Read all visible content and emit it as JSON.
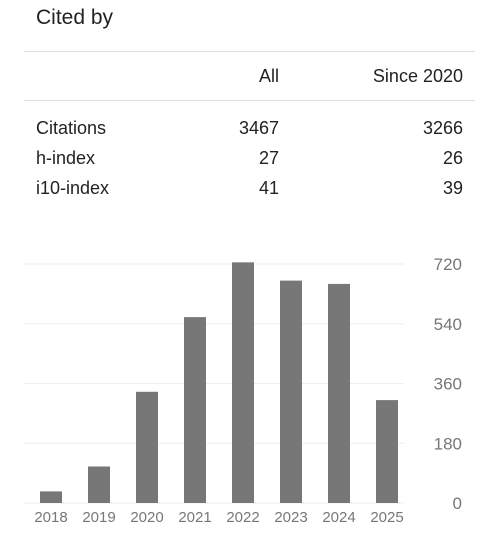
{
  "header": {
    "title": "Cited by"
  },
  "table": {
    "columns": [
      "All",
      "Since 2020"
    ],
    "rows": [
      {
        "label": "Citations",
        "all": "3467",
        "since": "3266"
      },
      {
        "label": "h-index",
        "all": "27",
        "since": "26"
      },
      {
        "label": "i10-index",
        "all": "41",
        "since": "39"
      }
    ]
  },
  "colors": {
    "bar": "#777777",
    "grid": "#eeeeee",
    "tick": "#777777"
  },
  "chart_data": {
    "type": "bar",
    "categories": [
      "2018",
      "2019",
      "2020",
      "2021",
      "2022",
      "2023",
      "2024",
      "2025"
    ],
    "values": [
      35,
      110,
      335,
      560,
      725,
      670,
      660,
      310
    ],
    "yticks": [
      0,
      180,
      360,
      540,
      720
    ],
    "ylim": [
      0,
      720
    ],
    "grid": true,
    "axis_side": "right"
  }
}
